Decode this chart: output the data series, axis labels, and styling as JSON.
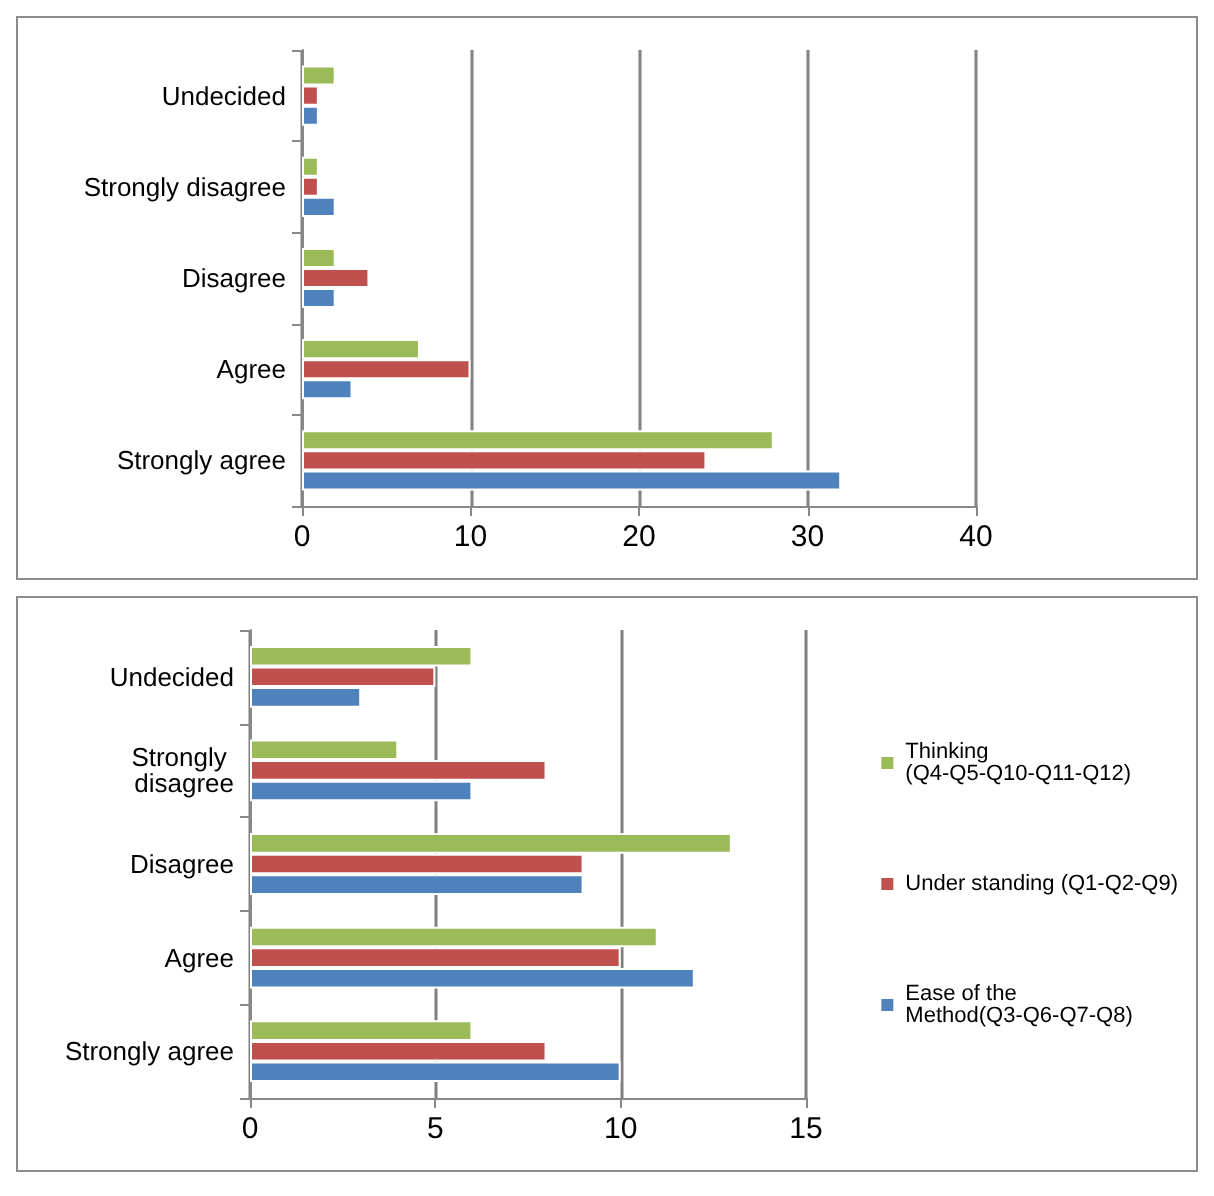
{
  "chart_data": [
    {
      "type": "bar",
      "orientation": "horizontal",
      "categories": [
        "Undecided",
        "Strongly disagree",
        "Disagree",
        "Agree",
        "Strongly agree"
      ],
      "xlim": [
        0,
        40
      ],
      "xticks": [
        0,
        10,
        20,
        30,
        40
      ],
      "grid": "x",
      "legend": false,
      "series": [
        {
          "color": "#9bbb59",
          "values": [
            2,
            1,
            2,
            7,
            28
          ]
        },
        {
          "color": "#c0504d",
          "values": [
            1,
            1,
            4,
            10,
            24
          ]
        },
        {
          "color": "#4f81bd",
          "values": [
            1,
            2,
            2,
            3,
            32
          ]
        }
      ]
    },
    {
      "type": "bar",
      "orientation": "horizontal",
      "categories": [
        "Undecided",
        "Strongly disagree",
        "Disagree",
        "Agree",
        "Strongly agree"
      ],
      "xlim": [
        0,
        15
      ],
      "xticks": [
        0,
        5,
        10,
        15
      ],
      "grid": "x",
      "legend": "right",
      "series": [
        {
          "name": "Thinking (Q4-Q5-Q10-Q11-Q12)",
          "color": "#9bbb59",
          "values": [
            6,
            4,
            13,
            11,
            6
          ]
        },
        {
          "name": "Under standing (Q1-Q2-Q9)",
          "color": "#c0504d",
          "values": [
            5,
            8,
            9,
            10,
            8
          ]
        },
        {
          "name": "Ease of the Method(Q3-Q6-Q7-Q8)",
          "color": "#4f81bd",
          "values": [
            3,
            6,
            9,
            12,
            10
          ]
        }
      ]
    }
  ]
}
